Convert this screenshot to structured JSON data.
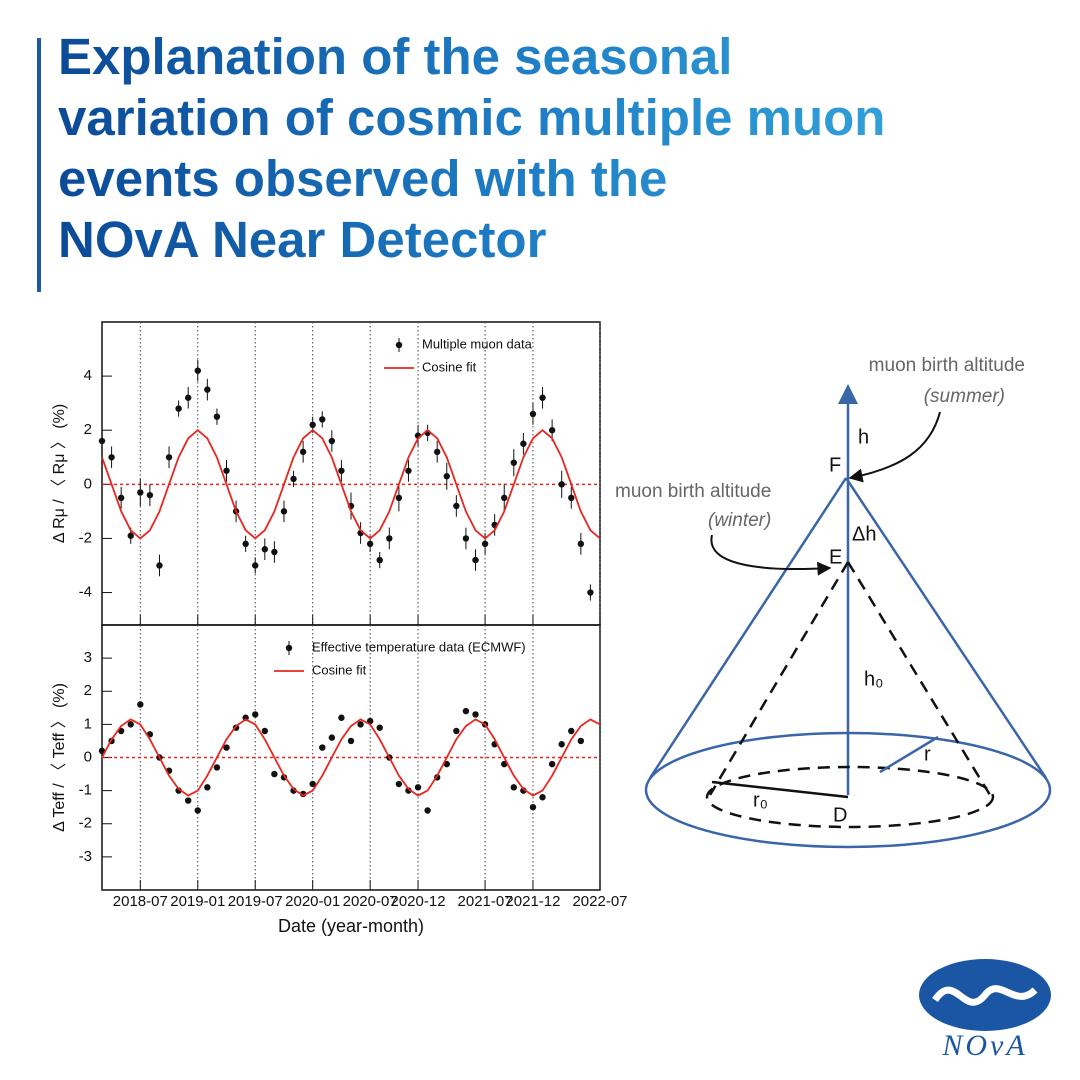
{
  "header": {
    "title_lines": [
      "Explanation of the seasonal",
      "variation of cosmic multiple muon",
      "events observed with the",
      "NOvA Near Detector"
    ]
  },
  "chart_data": [
    {
      "type": "scatter",
      "ylabel": "Δ Rμ / 〈 Rμ 〉 (%)",
      "x": [
        "2018-03",
        "2018-04",
        "2018-05",
        "2018-06",
        "2018-07",
        "2018-08",
        "2018-09",
        "2018-10",
        "2018-11",
        "2018-12",
        "2019-01",
        "2019-02",
        "2019-03",
        "2019-04",
        "2019-05",
        "2019-06",
        "2019-07",
        "2019-08",
        "2019-09",
        "2019-10",
        "2019-11",
        "2019-12",
        "2020-01",
        "2020-02",
        "2020-03",
        "2020-04",
        "2020-05",
        "2020-06",
        "2020-07",
        "2020-08",
        "2020-09",
        "2020-10",
        "2020-11",
        "2020-12",
        "2021-01",
        "2021-02",
        "2021-03",
        "2021-04",
        "2021-05",
        "2021-06",
        "2021-07",
        "2021-08",
        "2021-09",
        "2021-10",
        "2021-11",
        "2021-12",
        "2022-01",
        "2022-02",
        "2022-03",
        "2022-04",
        "2022-05",
        "2022-06",
        "2022-07"
      ],
      "xlim": [
        "2018-03",
        "2022-07"
      ],
      "xticks": [
        "2018-07",
        "2019-01",
        "2019-07",
        "2020-01",
        "2020-07",
        "2020-12",
        "2021-07",
        "2021-12",
        "2022-07"
      ],
      "show_xtick_labels": false,
      "ylim": [
        -5.2,
        6
      ],
      "yticks": [
        -4,
        -2,
        0,
        2,
        4
      ],
      "hline": 0,
      "vgrid": true,
      "legend": "top-right",
      "series": [
        {
          "name": "Multiple muon data",
          "mode": "markers",
          "color": "#111111",
          "values": [
            1.6,
            1.0,
            -0.5,
            -1.9,
            -0.3,
            -0.4,
            -3.0,
            1.0,
            2.8,
            3.2,
            4.2,
            3.5,
            2.5,
            0.5,
            -1.0,
            -2.2,
            -3.0,
            -2.4,
            -2.5,
            -1.0,
            0.2,
            1.2,
            2.2,
            2.4,
            1.6,
            0.5,
            -0.8,
            -1.8,
            -2.2,
            -2.8,
            -2.0,
            -0.5,
            0.5,
            1.8,
            1.9,
            1.2,
            0.3,
            -0.8,
            -2.0,
            -2.8,
            -2.2,
            -1.5,
            -0.5,
            0.8,
            1.5,
            2.6,
            3.2,
            2.0,
            0.0,
            -0.5,
            -2.2,
            -4.0,
            null
          ],
          "errors": [
            0.3,
            0.4,
            0.4,
            0.3,
            0.5,
            0.4,
            0.4,
            0.4,
            0.3,
            0.4,
            0.4,
            0.4,
            0.3,
            0.4,
            0.4,
            0.3,
            0.3,
            0.4,
            0.4,
            0.4,
            0.3,
            0.4,
            0.3,
            0.3,
            0.4,
            0.4,
            0.5,
            0.4,
            0.3,
            0.3,
            0.4,
            0.5,
            0.4,
            0.4,
            0.3,
            0.4,
            0.5,
            0.4,
            0.4,
            0.4,
            0.4,
            0.4,
            0.5,
            0.5,
            0.4,
            0.4,
            0.4,
            0.4,
            0.5,
            0.4,
            0.4,
            0.3,
            null
          ]
        },
        {
          "name": "Cosine fit",
          "mode": "line",
          "color": "#e8261f",
          "values": [
            1.0,
            0.0,
            -1.0,
            -1.7,
            -2.0,
            -1.7,
            -1.0,
            0.0,
            1.0,
            1.7,
            2.0,
            1.7,
            1.0,
            0.0,
            -1.0,
            -1.7,
            -2.0,
            -1.7,
            -1.0,
            0.0,
            1.0,
            1.7,
            2.0,
            1.7,
            1.0,
            0.0,
            -1.0,
            -1.7,
            -2.0,
            -1.7,
            -1.0,
            0.0,
            1.0,
            1.7,
            2.0,
            1.7,
            1.0,
            0.0,
            -1.0,
            -1.7,
            -2.0,
            -1.7,
            -1.0,
            0.0,
            1.0,
            1.7,
            2.0,
            1.7,
            1.0,
            0.0,
            -1.0,
            -1.7,
            -2.0
          ]
        }
      ]
    },
    {
      "type": "scatter",
      "ylabel": "Δ Teff / 〈 Teff 〉 (%)",
      "xlabel": "Date (year-month)",
      "x": [
        "2018-03",
        "2018-04",
        "2018-05",
        "2018-06",
        "2018-07",
        "2018-08",
        "2018-09",
        "2018-10",
        "2018-11",
        "2018-12",
        "2019-01",
        "2019-02",
        "2019-03",
        "2019-04",
        "2019-05",
        "2019-06",
        "2019-07",
        "2019-08",
        "2019-09",
        "2019-10",
        "2019-11",
        "2019-12",
        "2020-01",
        "2020-02",
        "2020-03",
        "2020-04",
        "2020-05",
        "2020-06",
        "2020-07",
        "2020-08",
        "2020-09",
        "2020-10",
        "2020-11",
        "2020-12",
        "2021-01",
        "2021-02",
        "2021-03",
        "2021-04",
        "2021-05",
        "2021-06",
        "2021-07",
        "2021-08",
        "2021-09",
        "2021-10",
        "2021-11",
        "2021-12",
        "2022-01",
        "2022-02",
        "2022-03",
        "2022-04",
        "2022-05",
        "2022-06",
        "2022-07"
      ],
      "xlim": [
        "2018-03",
        "2022-07"
      ],
      "xticks": [
        "2018-07",
        "2019-01",
        "2019-07",
        "2020-01",
        "2020-07",
        "2020-12",
        "2021-07",
        "2021-12",
        "2022-07"
      ],
      "show_xtick_labels": true,
      "ylim": [
        -4,
        4
      ],
      "yticks": [
        -3,
        -2,
        -1,
        0,
        1,
        2,
        3
      ],
      "hline": 0,
      "vgrid": true,
      "legend": "top-center",
      "series": [
        {
          "name": "Effective temperature data (ECMWF)",
          "mode": "markers",
          "color": "#111111",
          "values": [
            0.2,
            0.5,
            0.8,
            1.0,
            1.6,
            0.7,
            0.0,
            -0.4,
            -1.0,
            -1.3,
            -1.6,
            -0.9,
            -0.3,
            0.3,
            0.9,
            1.2,
            1.3,
            0.8,
            -0.5,
            -0.6,
            -1.0,
            -1.1,
            -0.8,
            0.3,
            0.6,
            1.2,
            0.5,
            1.0,
            1.1,
            0.9,
            0.0,
            -0.8,
            -1.0,
            -0.9,
            -1.6,
            -0.6,
            -0.2,
            0.8,
            1.4,
            1.3,
            1.0,
            0.4,
            -0.2,
            -0.9,
            -1.0,
            -1.5,
            -1.2,
            -0.2,
            0.4,
            0.8,
            0.5,
            null,
            null
          ]
        },
        {
          "name": "Cosine fit",
          "mode": "line",
          "color": "#e8261f",
          "values": [
            0.0,
            0.55,
            0.95,
            1.15,
            1.0,
            0.55,
            0.0,
            -0.55,
            -0.95,
            -1.15,
            -1.0,
            -0.55,
            0.0,
            0.55,
            0.95,
            1.15,
            1.0,
            0.55,
            0.0,
            -0.55,
            -0.95,
            -1.15,
            -1.0,
            -0.55,
            0.0,
            0.55,
            0.95,
            1.15,
            1.0,
            0.55,
            0.0,
            -0.55,
            -0.95,
            -1.15,
            -1.0,
            -0.55,
            0.0,
            0.55,
            0.95,
            1.15,
            1.0,
            0.55,
            0.0,
            -0.55,
            -0.95,
            -1.15,
            -1.0,
            -0.55,
            0.0,
            0.55,
            0.95,
            1.15,
            1.0
          ]
        }
      ]
    }
  ],
  "diagram": {
    "summer_label": "muon birth altitude",
    "summer_season": "(summer)",
    "winter_label": "muon birth altitude",
    "winter_season": "(winter)",
    "h": "h",
    "F": "F",
    "dh": "Δh",
    "E": "E",
    "h0": "h₀",
    "r": "r",
    "r0": "r₀",
    "D": "D"
  },
  "logo": {
    "text": "NOvA"
  }
}
